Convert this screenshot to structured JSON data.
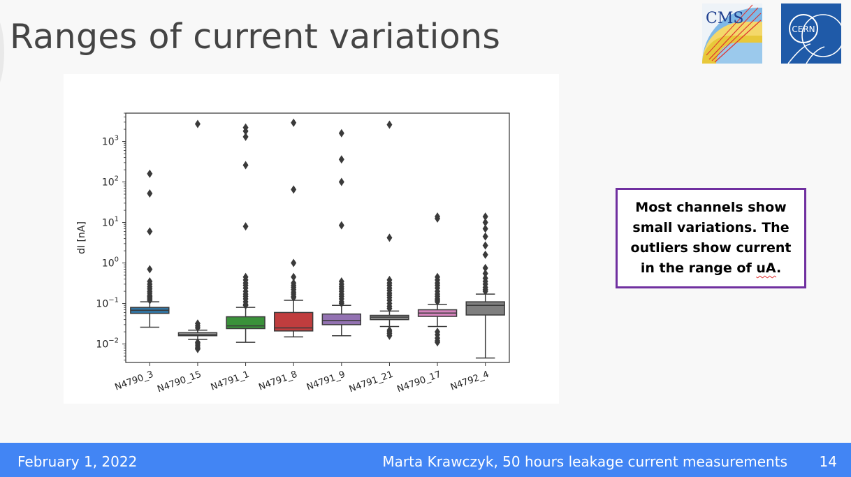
{
  "slide": {
    "title": "Ranges of current variations",
    "callout_text_before": "Most channels show small variations. The outliers show current in the range of ",
    "callout_text_underlined": "uA",
    "callout_text_after": "."
  },
  "logos": [
    {
      "name": "CMS",
      "text": "CMS"
    },
    {
      "name": "CERN",
      "text": "CERN"
    }
  ],
  "footer": {
    "date": "February 1, 2022",
    "author_title": "Marta Krawczyk, 50 hours leakage current measurements",
    "page": "14"
  },
  "chart_data": {
    "type": "box",
    "ylabel": "dI [nA]",
    "xlabel": "",
    "yscale": "log",
    "ylim": [
      0.0035,
      5000
    ],
    "yticks": [
      0.01,
      0.1,
      1,
      10,
      100,
      1000
    ],
    "ytick_labels": [
      {
        "base": "10",
        "exp": "−2"
      },
      {
        "base": "10",
        "exp": "−1"
      },
      {
        "base": "10",
        "exp": "0"
      },
      {
        "base": "10",
        "exp": "1"
      },
      {
        "base": "10",
        "exp": "2"
      },
      {
        "base": "10",
        "exp": "3"
      }
    ],
    "categories": [
      "N4790_3",
      "N4790_15",
      "N4791_1",
      "N4791_8",
      "N4791_9",
      "N4791_21",
      "N4790_17",
      "N4792_4"
    ],
    "colors": [
      "#3274a1",
      "#9a9a9a",
      "#3a923a",
      "#c03d3e",
      "#9372b2",
      "#8c8c8c",
      "#d684bd",
      "#7f7f7f"
    ],
    "boxes": [
      {
        "whislo": 0.026,
        "q1": 0.057,
        "med": 0.068,
        "q3": 0.08,
        "whishi": 0.11,
        "fliers": [
          160,
          52,
          6,
          0.7,
          0.35,
          0.3,
          0.26,
          0.23,
          0.2,
          0.18,
          0.16,
          0.15,
          0.14,
          0.13,
          0.12
        ]
      },
      {
        "whislo": 0.013,
        "q1": 0.016,
        "med": 0.017,
        "q3": 0.019,
        "whishi": 0.022,
        "fliers": [
          2700,
          0.032,
          0.028,
          0.025,
          0.011,
          0.01,
          0.009,
          0.008,
          0.0075
        ]
      },
      {
        "whislo": 0.011,
        "q1": 0.024,
        "med": 0.028,
        "q3": 0.047,
        "whishi": 0.08,
        "fliers": [
          2200,
          1800,
          1300,
          260,
          8,
          0.45,
          0.38,
          0.32,
          0.28,
          0.24,
          0.2,
          0.17,
          0.15,
          0.13,
          0.11,
          0.095,
          0.09
        ]
      },
      {
        "whislo": 0.015,
        "q1": 0.021,
        "med": 0.025,
        "q3": 0.06,
        "whishi": 0.12,
        "fliers": [
          2900,
          65,
          1,
          0.45,
          0.32,
          0.28,
          0.25,
          0.22,
          0.19,
          0.17,
          0.15,
          0.14
        ]
      },
      {
        "whislo": 0.016,
        "q1": 0.03,
        "med": 0.038,
        "q3": 0.055,
        "whishi": 0.09,
        "fliers": [
          1600,
          360,
          100,
          8.5,
          0.35,
          0.3,
          0.26,
          0.23,
          0.2,
          0.17,
          0.15,
          0.13,
          0.11,
          0.1
        ]
      },
      {
        "whislo": 0.027,
        "q1": 0.04,
        "med": 0.046,
        "q3": 0.051,
        "whishi": 0.065,
        "fliers": [
          2600,
          4.2,
          0.38,
          0.32,
          0.28,
          0.24,
          0.21,
          0.18,
          0.16,
          0.14,
          0.12,
          0.1,
          0.085,
          0.075,
          0.022,
          0.02,
          0.018,
          0.016
        ]
      },
      {
        "whislo": 0.027,
        "q1": 0.048,
        "med": 0.058,
        "q3": 0.07,
        "whishi": 0.095,
        "fliers": [
          14,
          12.5,
          0.45,
          0.38,
          0.32,
          0.28,
          0.24,
          0.2,
          0.17,
          0.15,
          0.13,
          0.12,
          0.11,
          0.02,
          0.017,
          0.014,
          0.012,
          0.011
        ]
      },
      {
        "whislo": 0.0045,
        "q1": 0.052,
        "med": 0.09,
        "q3": 0.11,
        "whishi": 0.17,
        "fliers": [
          14,
          10,
          7,
          4.5,
          2.7,
          1.6,
          0.75,
          0.55,
          0.42,
          0.35,
          0.3,
          0.25,
          0.22,
          0.2
        ]
      }
    ]
  }
}
